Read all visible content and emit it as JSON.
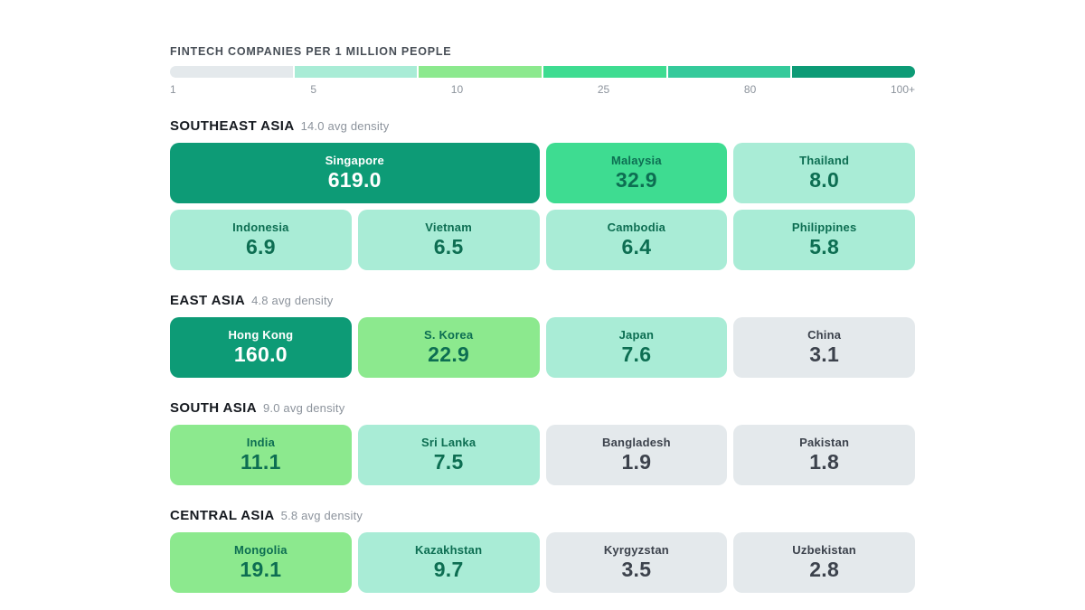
{
  "palette": {
    "tier_1": "#e4e9ec",
    "tier_5": "#a9ecd6",
    "tier_10": "#8ce98e",
    "tier_25": "#3edc91",
    "tier_80": "#35ca9b",
    "tier_100": "#0d9b76",
    "text_on_green": "#0d6e52",
    "text_on_gray": "#3c424c",
    "text_on_dark": "#ffffff"
  },
  "chart_data": {
    "type": "heatmap",
    "title": "FINTECH COMPANIES PER 1 MILLION PEOPLE",
    "legend": {
      "ticks": [
        "1",
        "5",
        "10",
        "25",
        "80",
        "100+"
      ],
      "segments": [
        "tier_1",
        "tier_5",
        "tier_10",
        "tier_25",
        "tier_80",
        "tier_100"
      ],
      "bucket_bounds": [
        1,
        5,
        10,
        25,
        80,
        100
      ]
    },
    "sections": [
      {
        "name": "SOUTHEAST ASIA",
        "avg_density": 14.0,
        "avg_label": "14.0 avg density",
        "cards": [
          {
            "country": "Singapore",
            "value": 619.0,
            "display": "619.0",
            "tier": "tier_100"
          },
          {
            "country": "Malaysia",
            "value": 32.9,
            "display": "32.9",
            "tier": "tier_25"
          },
          {
            "country": "Thailand",
            "value": 8.0,
            "display": "8.0",
            "tier": "tier_5"
          },
          {
            "country": "Indonesia",
            "value": 6.9,
            "display": "6.9",
            "tier": "tier_5"
          },
          {
            "country": "Vietnam",
            "value": 6.5,
            "display": "6.5",
            "tier": "tier_5"
          },
          {
            "country": "Cambodia",
            "value": 6.4,
            "display": "6.4",
            "tier": "tier_5"
          },
          {
            "country": "Philippines",
            "value": 5.8,
            "display": "5.8",
            "tier": "tier_5"
          }
        ]
      },
      {
        "name": "EAST ASIA",
        "avg_density": 4.8,
        "avg_label": "4.8 avg density",
        "cards": [
          {
            "country": "Hong Kong",
            "value": 160.0,
            "display": "160.0",
            "tier": "tier_100"
          },
          {
            "country": "S. Korea",
            "value": 22.9,
            "display": "22.9",
            "tier": "tier_10"
          },
          {
            "country": "Japan",
            "value": 7.6,
            "display": "7.6",
            "tier": "tier_5"
          },
          {
            "country": "China",
            "value": 3.1,
            "display": "3.1",
            "tier": "tier_1"
          }
        ]
      },
      {
        "name": "SOUTH ASIA",
        "avg_density": 9.0,
        "avg_label": "9.0 avg density",
        "cards": [
          {
            "country": "India",
            "value": 11.1,
            "display": "11.1",
            "tier": "tier_10"
          },
          {
            "country": "Sri Lanka",
            "value": 7.5,
            "display": "7.5",
            "tier": "tier_5"
          },
          {
            "country": "Bangladesh",
            "value": 1.9,
            "display": "1.9",
            "tier": "tier_1"
          },
          {
            "country": "Pakistan",
            "value": 1.8,
            "display": "1.8",
            "tier": "tier_1"
          }
        ]
      },
      {
        "name": "CENTRAL ASIA",
        "avg_density": 5.8,
        "avg_label": "5.8 avg density",
        "cards": [
          {
            "country": "Mongolia",
            "value": 19.1,
            "display": "19.1",
            "tier": "tier_10"
          },
          {
            "country": "Kazakhstan",
            "value": 9.7,
            "display": "9.7",
            "tier": "tier_5"
          },
          {
            "country": "Kyrgyzstan",
            "value": 3.5,
            "display": "3.5",
            "tier": "tier_1"
          },
          {
            "country": "Uzbekistan",
            "value": 2.8,
            "display": "2.8",
            "tier": "tier_1"
          }
        ]
      }
    ]
  }
}
